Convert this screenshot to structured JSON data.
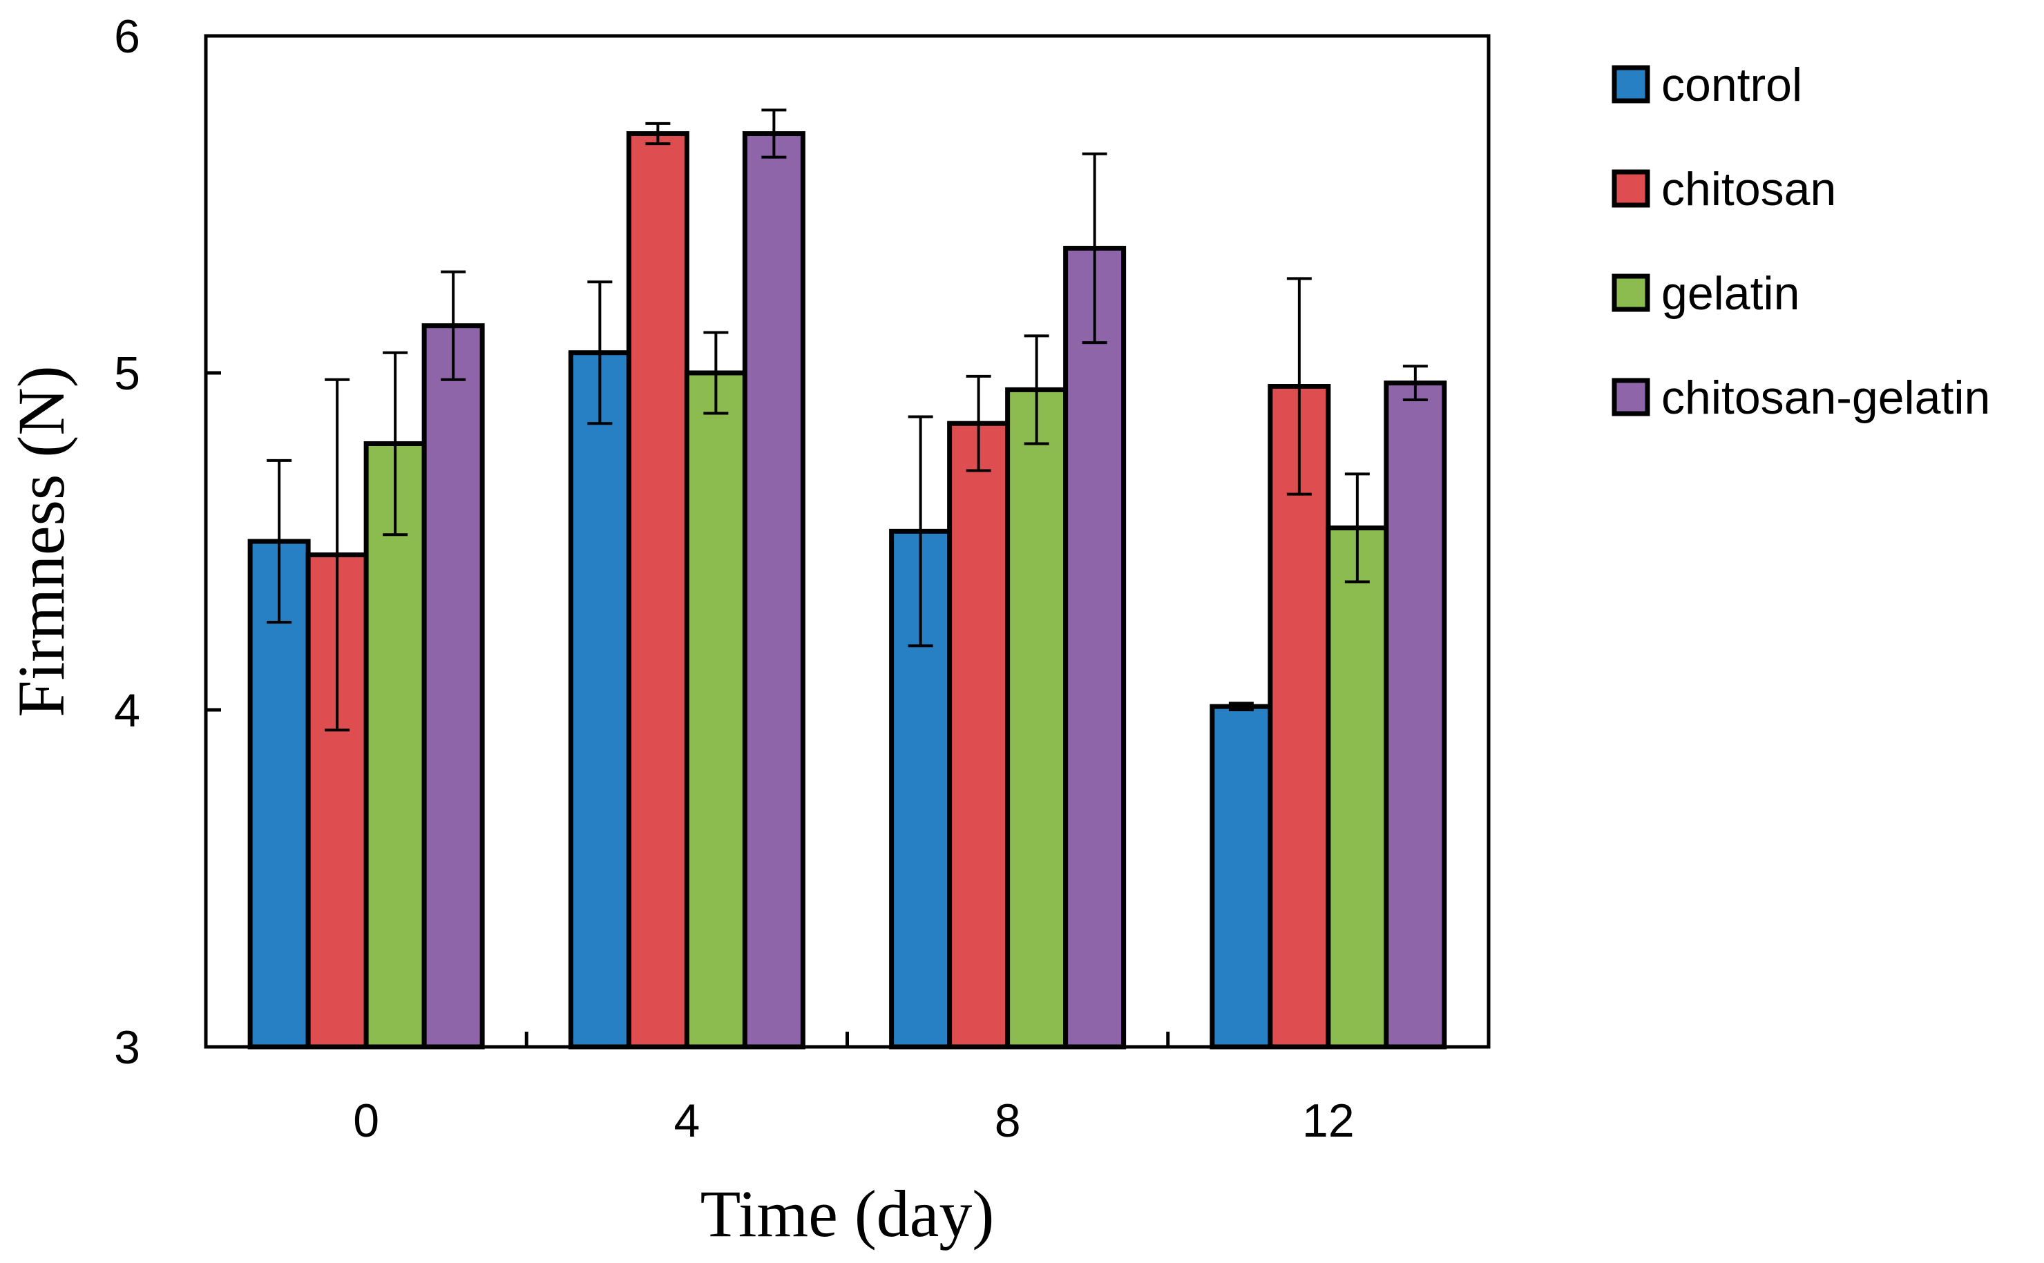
{
  "chart_data": {
    "type": "bar",
    "title": "",
    "xlabel": "Time (day)",
    "ylabel": "Firmness (N)",
    "ylim": [
      3,
      6
    ],
    "yticks": [
      3,
      4,
      5,
      6
    ],
    "categories": [
      "0",
      "4",
      "8",
      "12"
    ],
    "legend_position": "right",
    "grid": false,
    "series": [
      {
        "name": "control",
        "color": "#2780C3",
        "values": [
          4.5,
          5.06,
          4.53,
          4.01
        ],
        "errors": [
          0.24,
          0.21,
          0.34,
          0.01
        ]
      },
      {
        "name": "chitosan",
        "color": "#DE4E50",
        "values": [
          4.46,
          5.71,
          4.85,
          4.96
        ],
        "errors": [
          0.52,
          0.03,
          0.14,
          0.32
        ]
      },
      {
        "name": "gelatin",
        "color": "#8CBB4F",
        "values": [
          4.79,
          5.0,
          4.95,
          4.54
        ],
        "errors": [
          0.27,
          0.12,
          0.16,
          0.16
        ]
      },
      {
        "name": "chitosan-gelatin",
        "color": "#8D65A8",
        "values": [
          5.14,
          5.71,
          5.37,
          4.97
        ],
        "errors": [
          0.16,
          0.07,
          0.28,
          0.05
        ]
      }
    ]
  }
}
